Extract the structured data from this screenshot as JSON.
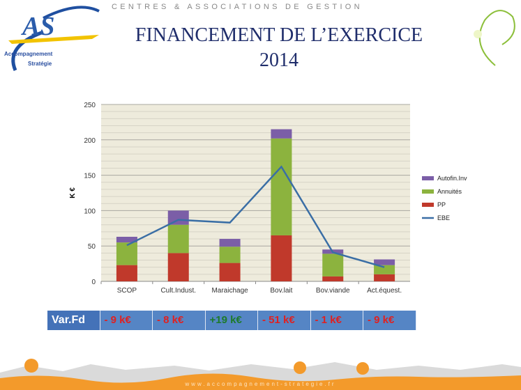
{
  "header": {
    "tagline": "CENTRES & ASSOCIATIONS DE GESTION",
    "title_line1": "FINANCEMENT DE L’EXERCICE",
    "title_line2": "2014",
    "logo_text": "AS Accompagnement Stratégie"
  },
  "chart_data": {
    "type": "bar",
    "stacked": true,
    "categories": [
      "SCOP",
      "Cult.Indust.",
      "Maraichage",
      "Bov.lait",
      "Bov.viande",
      "Act.équest."
    ],
    "series": [
      {
        "name": "PP",
        "type": "bar",
        "color": "#c0392b",
        "values": [
          23,
          40,
          26,
          65,
          7,
          10
        ]
      },
      {
        "name": "Annuités",
        "type": "bar",
        "color": "#8cb33e",
        "values": [
          32,
          40,
          23,
          137,
          32,
          13
        ]
      },
      {
        "name": "Autofin.Inv",
        "type": "bar",
        "color": "#7b5ea7",
        "values": [
          8,
          20,
          11,
          13,
          6,
          8
        ]
      },
      {
        "name": "EBE",
        "type": "line",
        "color": "#3a6ea5",
        "values": [
          51,
          87,
          83,
          162,
          41,
          20
        ]
      }
    ],
    "ylabel": "K €",
    "ylim": [
      0,
      250
    ],
    "yticks": [
      0,
      50,
      100,
      150,
      200,
      250
    ],
    "grid": true,
    "legend": "right",
    "legend_order": [
      "Autofin.Inv",
      "Annuités",
      "PP",
      "EBE"
    ]
  },
  "var_table": {
    "label": "Var.Fd",
    "values": [
      "- 9 k€",
      "- 8 k€",
      "+19 k€",
      "- 51 k€",
      "- 1 k€",
      "- 9 k€"
    ]
  },
  "footer": {
    "url": "www.accompagnement-strategie.fr"
  }
}
